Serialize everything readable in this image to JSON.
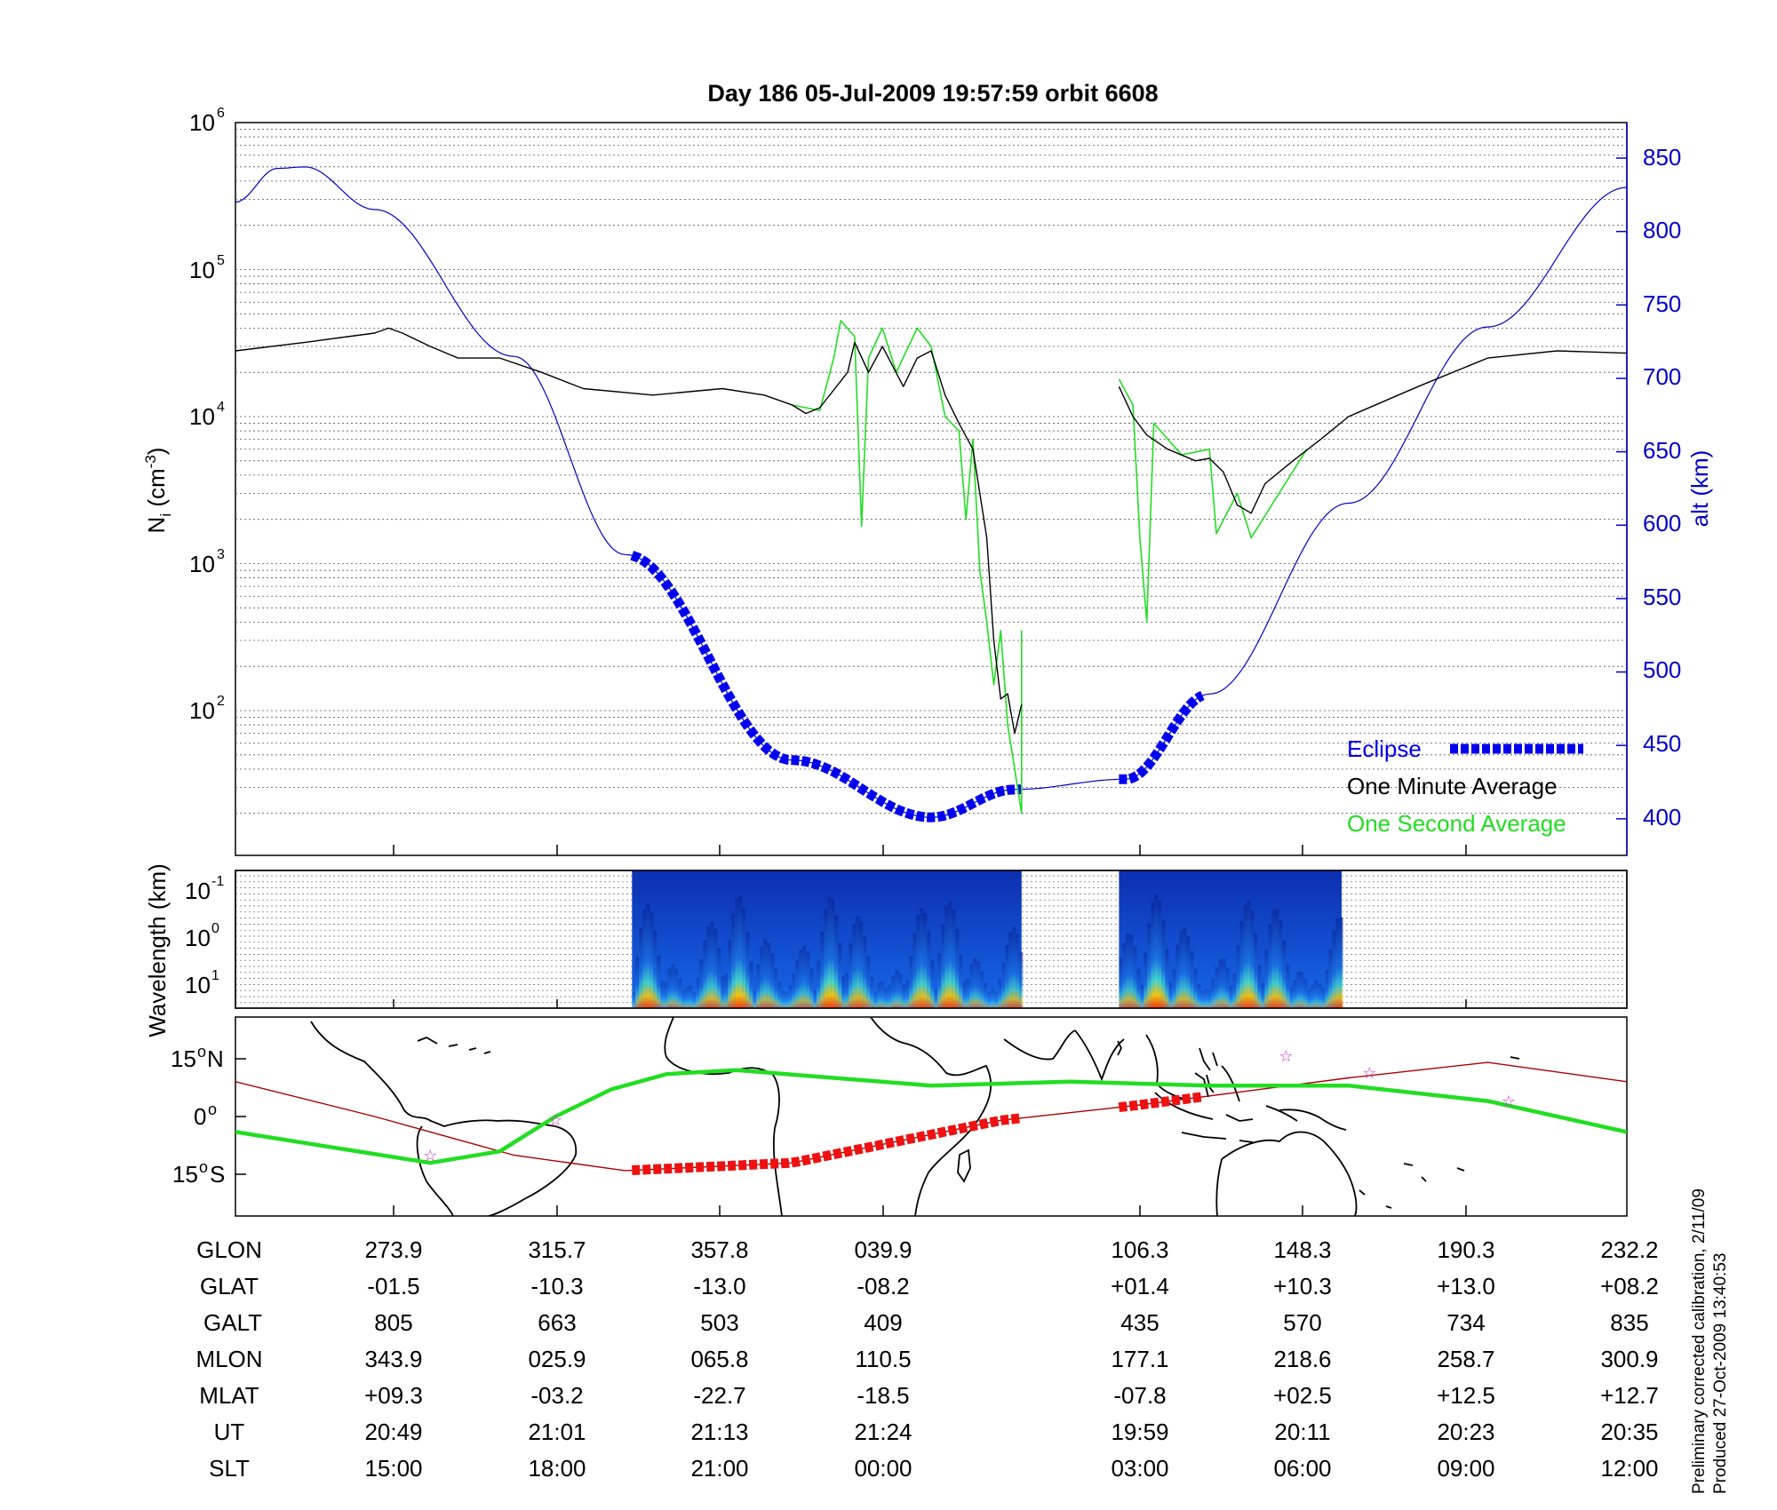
{
  "title": "Day 186  05-Jul-2009 19:57:59   orbit 6608",
  "colors": {
    "altitude": "#0000cc",
    "eclipse": "#0000ee",
    "minute_avg": "#000000",
    "second_avg": "#22dd22",
    "ground_track": "#22dd22",
    "ref_track": "#aa0000",
    "eclipse_track": "#ee1111",
    "star": "#cc33cc"
  },
  "top_panel": {
    "ylabel_left_main": "N",
    "ylabel_left_sub": "i",
    "ylabel_left_unit_open": " (cm",
    "ylabel_left_unit_exp": "-3",
    "ylabel_left_unit_close": ")",
    "ylabel_right": "alt (km)",
    "left_ticks": [
      {
        "base": "10",
        "exp": "6"
      },
      {
        "base": "10",
        "exp": "5"
      },
      {
        "base": "10",
        "exp": "4"
      },
      {
        "base": "10",
        "exp": "3"
      },
      {
        "base": "10",
        "exp": "2"
      }
    ],
    "right_ticks": [
      "850",
      "800",
      "750",
      "700",
      "650",
      "600",
      "550",
      "500",
      "450",
      "400"
    ],
    "legend": {
      "eclipse": "Eclipse",
      "minute": "One Minute Average",
      "second": "One Second Average"
    }
  },
  "middle_panel": {
    "ylabel": "Wavelength (km)",
    "ticks": [
      {
        "base": "10",
        "exp": "-1"
      },
      {
        "base": "10",
        "exp": "0"
      },
      {
        "base": "10",
        "exp": "1"
      }
    ]
  },
  "bottom_panel": {
    "lat_ticks": [
      {
        "num": "15",
        "sym": "o",
        "hemi": "N"
      },
      {
        "num": "0",
        "sym": "o",
        "hemi": ""
      },
      {
        "num": "15",
        "sym": "o",
        "hemi": "S"
      }
    ]
  },
  "table": {
    "row_labels": [
      "GLON",
      "GLAT",
      "GALT",
      "MLON",
      "MLAT",
      "UT",
      "SLT"
    ],
    "columns": [
      [
        "273.9",
        "-01.5",
        "805",
        "343.9",
        "+09.3",
        "20:49",
        "15:00"
      ],
      [
        "315.7",
        "-10.3",
        "663",
        "025.9",
        "-03.2",
        "21:01",
        "18:00"
      ],
      [
        "357.8",
        "-13.0",
        "503",
        "065.8",
        "-22.7",
        "21:13",
        "21:00"
      ],
      [
        "039.9",
        "-08.2",
        "409",
        "110.5",
        "-18.5",
        "21:24",
        "00:00"
      ],
      [
        "106.3",
        "+01.4",
        "435",
        "177.1",
        "-07.8",
        "19:59",
        "03:00"
      ],
      [
        "148.3",
        "+10.3",
        "570",
        "218.6",
        "+02.5",
        "20:11",
        "06:00"
      ],
      [
        "190.3",
        "+13.0",
        "734",
        "258.7",
        "+12.5",
        "20:23",
        "09:00"
      ],
      [
        "232.2",
        "+08.2",
        "835",
        "300.9",
        "+12.7",
        "20:35",
        "12:00"
      ]
    ]
  },
  "footer": {
    "line1": "Preliminary corrected calibration, 2/11/09",
    "line2": "Produced 27-Oct-2009 13:40:53"
  },
  "chart_data": [
    {
      "type": "line",
      "title": "Day 186  05-Jul-2009 19:57:59   orbit 6608",
      "x_scale": "orbital position (axis unlabeled)",
      "y_left": {
        "label": "Ni (cm-3)",
        "scale": "log",
        "range": [
          10,
          1000000
        ]
      },
      "y_right": {
        "label": "alt (km)",
        "range": [
          375,
          875
        ]
      },
      "series": [
        {
          "name": "One Minute Average",
          "axis": "left",
          "segments": [
            [
              [
                0.0,
                28000
              ],
              [
                0.05,
                32000
              ],
              [
                0.1,
                37000
              ],
              [
                0.11,
                40000
              ],
              [
                0.12,
                37000
              ],
              [
                0.14,
                30000
              ],
              [
                0.16,
                25000
              ],
              [
                0.19,
                25000
              ],
              [
                0.22,
                20000
              ],
              [
                0.25,
                15500
              ],
              [
                0.3,
                14000
              ],
              [
                0.35,
                15500
              ],
              [
                0.38,
                14000
              ],
              [
                0.4,
                12000
              ],
              [
                0.41,
                10500
              ],
              [
                0.42,
                11500
              ],
              [
                0.44,
                20000
              ],
              [
                0.445,
                32000
              ],
              [
                0.455,
                20000
              ],
              [
                0.465,
                30000
              ],
              [
                0.48,
                16000
              ],
              [
                0.49,
                25000
              ],
              [
                0.5,
                28000
              ],
              [
                0.51,
                14000
              ],
              [
                0.52,
                9000
              ],
              [
                0.53,
                6000
              ],
              [
                0.535,
                3000
              ],
              [
                0.54,
                1500
              ],
              [
                0.545,
                300
              ],
              [
                0.55,
                120
              ],
              [
                0.555,
                130
              ],
              [
                0.56,
                70
              ],
              [
                0.565,
                110
              ]
            ],
            [
              [
                0.635,
                16000
              ],
              [
                0.645,
                10000
              ],
              [
                0.655,
                7500
              ],
              [
                0.67,
                6000
              ],
              [
                0.69,
                5000
              ],
              [
                0.7,
                5200
              ],
              [
                0.71,
                4200
              ],
              [
                0.72,
                2500
              ],
              [
                0.73,
                2200
              ],
              [
                0.74,
                3500
              ],
              [
                0.76,
                5000
              ],
              [
                0.78,
                7000
              ],
              [
                0.8,
                10000
              ],
              [
                0.85,
                16000
              ],
              [
                0.9,
                25000
              ],
              [
                0.95,
                28000
              ],
              [
                1.0,
                27000
              ]
            ]
          ]
        },
        {
          "name": "One Second Average",
          "axis": "left",
          "segments": [
            [
              [
                0.4,
                12000
              ],
              [
                0.42,
                11000
              ],
              [
                0.43,
                25000
              ],
              [
                0.435,
                45000
              ],
              [
                0.445,
                35000
              ],
              [
                0.45,
                1800
              ],
              [
                0.455,
                25000
              ],
              [
                0.465,
                40000
              ],
              [
                0.475,
                20000
              ],
              [
                0.49,
                40000
              ],
              [
                0.5,
                30000
              ],
              [
                0.51,
                10000
              ],
              [
                0.52,
                8000
              ],
              [
                0.525,
                2000
              ],
              [
                0.53,
                7000
              ],
              [
                0.535,
                900
              ],
              [
                0.54,
                400
              ],
              [
                0.545,
                150
              ],
              [
                0.55,
                350
              ],
              [
                0.555,
                80
              ],
              [
                0.56,
                40
              ],
              [
                0.565,
                20
              ],
              [
                0.565,
                350
              ]
            ],
            [
              [
                0.635,
                18000
              ],
              [
                0.645,
                12000
              ],
              [
                0.65,
                1500
              ],
              [
                0.655,
                400
              ],
              [
                0.66,
                9000
              ],
              [
                0.68,
                5500
              ],
              [
                0.7,
                6000
              ],
              [
                0.705,
                1600
              ],
              [
                0.72,
                3000
              ],
              [
                0.73,
                1500
              ],
              [
                0.75,
                3000
              ],
              [
                0.77,
                6000
              ]
            ]
          ]
        },
        {
          "name": "alt (km)",
          "axis": "right",
          "note": "sinusoidal altitude profile, min ~400 km, max ~845 km",
          "points": [
            [
              0.0,
              820
            ],
            [
              0.03,
              843
            ],
            [
              0.05,
              844
            ],
            [
              0.1,
              815
            ],
            [
              0.2,
              715
            ],
            [
              0.28,
              580
            ],
            [
              0.4,
              440
            ],
            [
              0.5,
              401
            ],
            [
              0.56,
              420
            ],
            [
              0.64,
              427
            ],
            [
              0.7,
              485
            ],
            [
              0.8,
              615
            ],
            [
              0.9,
              735
            ],
            [
              1.0,
              830
            ]
          ]
        }
      ],
      "eclipse_intervals": [
        [
          0.285,
          0.565
        ],
        [
          0.635,
          0.695
        ]
      ]
    },
    {
      "type": "heatmap",
      "ylabel": "Wavelength (km)",
      "y_scale": "log",
      "y_ticks": [
        "10^-1",
        "10^0",
        "10^1"
      ],
      "data_intervals": [
        [
          0.285,
          0.565
        ],
        [
          0.635,
          0.795
        ]
      ]
    },
    {
      "type": "line",
      "note": "ground track map",
      "y_ticks": [
        "15°N",
        "0°",
        "15°S"
      ],
      "series": [
        {
          "name": "ground track",
          "points": [
            [
              0.0,
              -4
            ],
            [
              0.14,
              -12
            ],
            [
              0.19,
              -9
            ],
            [
              0.23,
              0
            ],
            [
              0.27,
              7
            ],
            [
              0.31,
              11
            ],
            [
              0.36,
              12
            ],
            [
              0.5,
              8
            ],
            [
              0.6,
              9
            ],
            [
              0.7,
              8
            ],
            [
              0.8,
              8
            ],
            [
              0.9,
              4
            ],
            [
              1.0,
              -4
            ]
          ]
        },
        {
          "name": "reference",
          "points": [
            [
              0.0,
              9
            ],
            [
              0.1,
              0
            ],
            [
              0.2,
              -10
            ],
            [
              0.28,
              -14
            ],
            [
              0.4,
              -12
            ],
            [
              0.55,
              -1
            ],
            [
              0.65,
              3
            ],
            [
              0.8,
              10
            ],
            [
              0.9,
              14
            ],
            [
              1.0,
              9
            ]
          ]
        }
      ]
    }
  ]
}
